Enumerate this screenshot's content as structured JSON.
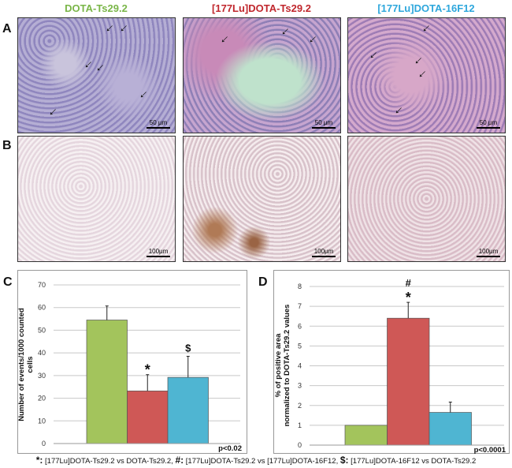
{
  "columns": [
    {
      "label": "DOTA-Ts29.2",
      "color": "#7ab648"
    },
    {
      "label": "[177Lu]DOTA-Ts29.2",
      "color": "#c0272d"
    },
    {
      "label": "[177Lu]DOTA-16F12",
      "color": "#2ea7dc"
    }
  ],
  "row_labels": [
    "A",
    "B"
  ],
  "scale_bars": {
    "row_a": "50 µm",
    "row_b": "100µm"
  },
  "chart_data": [
    {
      "panel": "C",
      "type": "bar",
      "categories": [
        "DOTA-Ts29.2",
        "[177Lu]DOTA-Ts29.2",
        "[177Lu]DOTA-16F12"
      ],
      "values": [
        54.5,
        23.2,
        29.2
      ],
      "errors": [
        6.2,
        7.2,
        9.3
      ],
      "colors": [
        "#a3c45c",
        "#cf5856",
        "#4fb5d2"
      ],
      "annotations": [
        "",
        "*",
        "$"
      ],
      "ylabel": "Number of events/1000 counted cells",
      "ylim": [
        0,
        70
      ],
      "yticks": [
        0,
        10,
        20,
        30,
        40,
        50,
        60,
        70
      ],
      "grid": true,
      "pvalue": "p<0.02"
    },
    {
      "panel": "D",
      "type": "bar",
      "categories": [
        "DOTA-Ts29.2",
        "[177Lu]DOTA-Ts29.2",
        "[177Lu]DOTA-16F12"
      ],
      "values": [
        1.0,
        6.4,
        1.65
      ],
      "errors": [
        0,
        0.8,
        0.52
      ],
      "colors": [
        "#a3c45c",
        "#cf5856",
        "#4fb5d2"
      ],
      "annotations": [
        "",
        "#\n*",
        ""
      ],
      "ylabel": "% of positive area normalized to DOTA-Ts29.2 values",
      "ylim": [
        0,
        8
      ],
      "yticks": [
        0,
        1,
        2,
        3,
        4,
        5,
        6,
        7,
        8
      ],
      "grid": true,
      "pvalue": "p<0.0001"
    }
  ],
  "footer": [
    {
      "sym": "*:",
      "text": " [177Lu]DOTA-Ts29.2 vs DOTA-Ts29.2, "
    },
    {
      "sym": "#:",
      "text": " [177Lu]DOTA-Ts29.2 vs [177Lu]DOTA-16F12, "
    },
    {
      "sym": "$:",
      "text": " [177Lu]DOTA-16F12 vs DOTA-Ts29.2"
    }
  ]
}
